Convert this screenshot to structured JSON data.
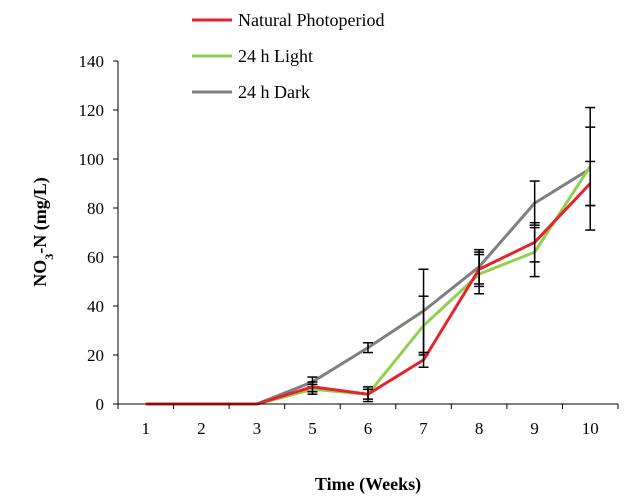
{
  "chart_data": {
    "type": "line",
    "categories": [
      "1",
      "2",
      "3",
      "5",
      "6",
      "7",
      "8",
      "9",
      "10"
    ],
    "xlabel": "Time (Weeks)",
    "ylabel": {
      "base": "NO",
      "sub": "3",
      "rest": "-N (mg/L)"
    },
    "ylim": [
      0,
      140
    ],
    "yticks": [
      0,
      20,
      40,
      60,
      80,
      100,
      120,
      140
    ],
    "grid": false,
    "legend_position": "top-left",
    "series": [
      {
        "name": "Natural Photoperiod",
        "color": "#e8222a",
        "values": [
          0,
          0,
          0,
          7,
          4,
          18,
          55,
          66,
          90
        ],
        "errors": [
          0,
          0,
          0,
          2,
          2,
          3,
          7,
          8,
          9
        ]
      },
      {
        "name": "24 h Light",
        "color": "#8fd14f",
        "values": [
          0,
          0,
          0,
          6,
          4,
          32,
          53,
          62,
          97
        ],
        "errors": [
          0,
          0,
          0,
          2,
          3,
          12,
          8,
          10,
          16
        ]
      },
      {
        "name": "24 h Dark",
        "color": "#7f7f7f",
        "values": [
          0,
          0,
          0,
          9,
          23,
          38,
          56,
          82,
          96
        ],
        "errors": [
          0,
          0,
          0,
          2,
          2,
          17,
          7,
          9,
          25
        ]
      }
    ]
  }
}
